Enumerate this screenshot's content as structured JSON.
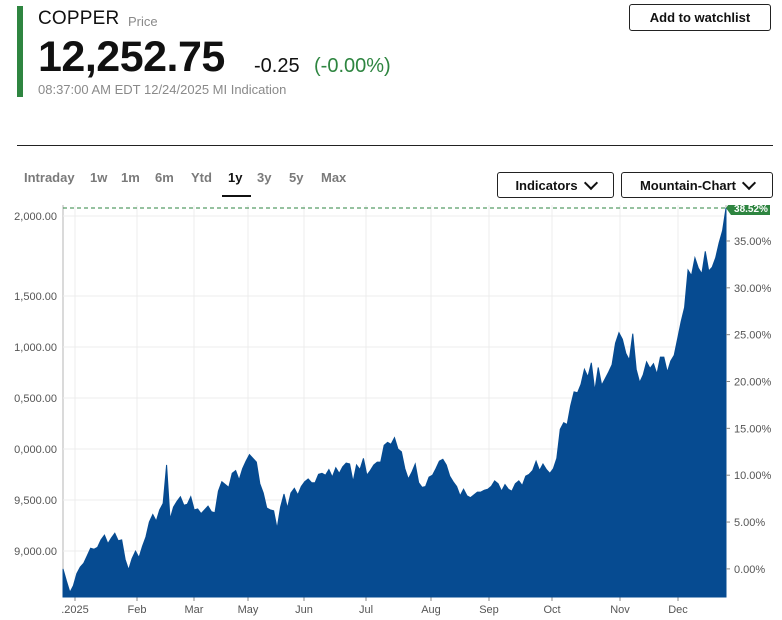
{
  "header": {
    "symbol": "COPPER",
    "symbol_sub": "Price",
    "price": "12,252.75",
    "change": "-0.25",
    "change_pct": "(-0.00%)",
    "timestamp": "08:37:00 AM EDT 12/24/2025  MI Indication",
    "watchlist_label": "Add to watchlist"
  },
  "ranges": [
    "Intraday",
    "1w",
    "1m",
    "6m",
    "Ytd",
    "1y",
    "3y",
    "5y",
    "Max"
  ],
  "active_range": "1y",
  "controls": {
    "indicators_label": "Indicators",
    "chart_type_label": "Mountain-Chart"
  },
  "colors": {
    "accent": "#2e8540",
    "area_fill": "#064b91",
    "positive": "#2e8540",
    "badge": "#2e8540"
  },
  "chart_data": {
    "type": "area",
    "x_labels": [
      ".2025",
      "Feb",
      "Mar",
      "May",
      "Jun",
      "Jul",
      "Aug",
      "Sep",
      "Oct",
      "Nov",
      "Dec"
    ],
    "left_ticks": [
      "2,000.00",
      "1,500.00",
      "1,000.00",
      "0,500.00",
      "0,000.00",
      "9,500.00",
      "9,000.00"
    ],
    "right_ticks": [
      "35.00%",
      "30.00%",
      "25.00%",
      "20.00%",
      "15.00%",
      "10.00%",
      "5.00%",
      "0.00%"
    ],
    "last_change_label": "38.52%",
    "ylim_pct": [
      -3,
      38.52
    ],
    "grid": true,
    "series": [
      {
        "values": [
          0.0,
          -1.3,
          -2.5,
          -1.8,
          -0.5,
          0.2,
          0.6,
          1.4,
          2.2,
          2.1,
          2.3,
          3.1,
          3.6,
          2.7,
          3.3,
          3.8,
          3.0,
          3.1,
          1.0,
          -0.1,
          1.1,
          1.9,
          1.2,
          2.4,
          3.4,
          5.0,
          5.8,
          5.1,
          6.3,
          7.0,
          11.1,
          5.3,
          6.6,
          7.2,
          7.7,
          6.8,
          6.9,
          7.7,
          6.3,
          6.4,
          5.9,
          6.3,
          6.7,
          6.1,
          6.0,
          8.3,
          9.3,
          9.0,
          8.7,
          10.2,
          10.5,
          9.5,
          10.7,
          11.5,
          12.2,
          11.8,
          11.4,
          9.1,
          8.1,
          6.5,
          6.3,
          6.2,
          4.3,
          6.6,
          8.0,
          6.5,
          8.1,
          8.6,
          7.9,
          8.8,
          9.3,
          9.6,
          9.2,
          9.2,
          10.1,
          10.2,
          10.0,
          10.6,
          9.8,
          10.8,
          10.2,
          10.9,
          11.3,
          11.2,
          9.3,
          11.1,
          10.6,
          11.8,
          10.0,
          10.5,
          11.1,
          11.4,
          11.4,
          13.2,
          13.5,
          13.3,
          14.0,
          12.8,
          12.5,
          10.7,
          9.6,
          10.3,
          11.2,
          9.2,
          8.7,
          8.8,
          9.8,
          10.0,
          10.7,
          11.5,
          11.7,
          11.1,
          9.9,
          9.3,
          8.8,
          7.8,
          8.5,
          7.8,
          7.6,
          7.9,
          8.2,
          8.2,
          8.4,
          8.5,
          8.8,
          9.4,
          9.1,
          8.3,
          9.0,
          8.5,
          8.3,
          9.1,
          9.4,
          8.9,
          9.9,
          10.1,
          10.5,
          11.5,
          10.5,
          11.2,
          10.6,
          10.2,
          10.7,
          11.8,
          14.9,
          15.6,
          15.4,
          17.4,
          18.9,
          18.8,
          19.7,
          21.3,
          20.5,
          22.0,
          19.0,
          21.5,
          19.6,
          20.3,
          21.0,
          21.8,
          24.1,
          25.2,
          24.5,
          23.0,
          22.3,
          25.1,
          21.3,
          19.9,
          20.7,
          22.1,
          21.4,
          21.9,
          20.8,
          22.6,
          22.6,
          21.0,
          22.2,
          22.8,
          24.6,
          26.4,
          27.9,
          31.9,
          31.3,
          33.2,
          32.1,
          31.5,
          33.9,
          31.8,
          32.2,
          33.2,
          34.8,
          36.1,
          38.52
        ]
      }
    ]
  }
}
